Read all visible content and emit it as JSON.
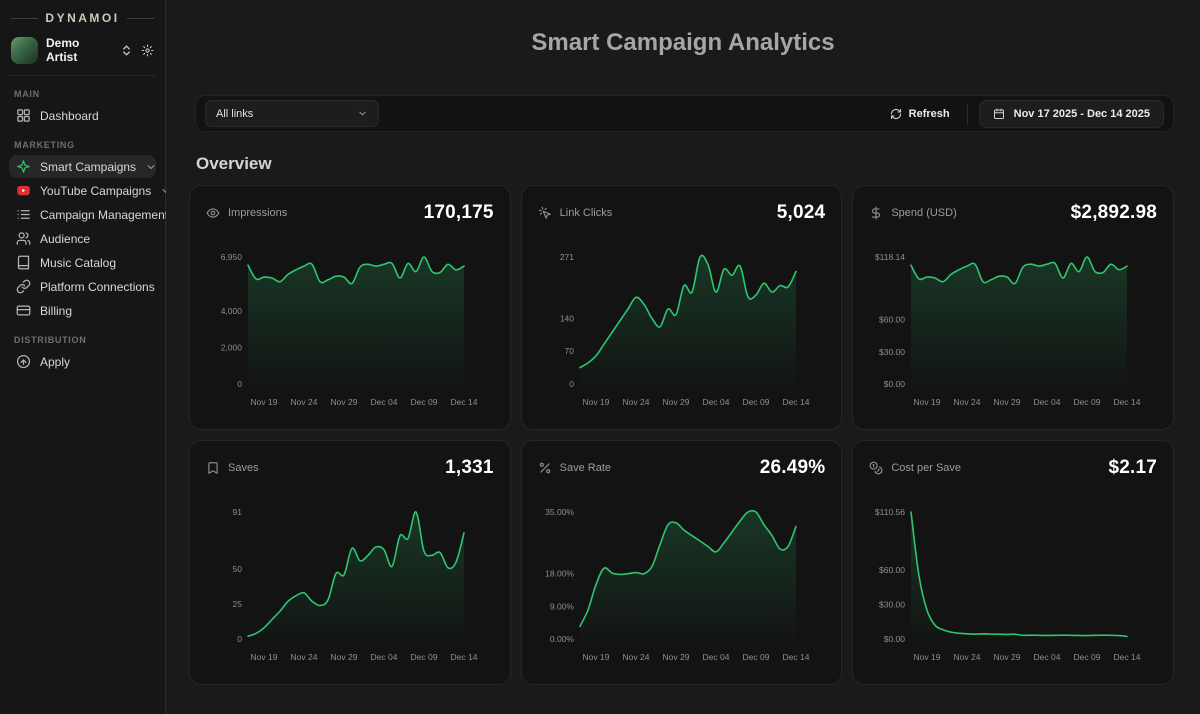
{
  "brand": {
    "logo_text": "DYNAMOI"
  },
  "profile": {
    "name": "Demo Artist"
  },
  "sidebar": {
    "sections": [
      {
        "label": "MAIN",
        "items": [
          {
            "id": "dashboard",
            "label": "Dashboard",
            "icon": "dashboard-icon"
          }
        ]
      },
      {
        "label": "MARKETING",
        "items": [
          {
            "id": "smart-campaigns",
            "label": "Smart Campaigns",
            "icon": "spark-icon",
            "active": true,
            "chevron": true
          },
          {
            "id": "youtube-campaigns",
            "label": "YouTube Campaigns",
            "icon": "youtube-icon",
            "chevron": true
          },
          {
            "id": "campaign-management",
            "label": "Campaign Management",
            "icon": "list-icon"
          },
          {
            "id": "audience",
            "label": "Audience",
            "icon": "users-icon"
          },
          {
            "id": "music-catalog",
            "label": "Music Catalog",
            "icon": "book-icon"
          },
          {
            "id": "platform-connections",
            "label": "Platform Connections",
            "icon": "link-icon"
          },
          {
            "id": "billing",
            "label": "Billing",
            "icon": "card-icon"
          }
        ]
      },
      {
        "label": "DISTRIBUTION",
        "items": [
          {
            "id": "apply",
            "label": "Apply",
            "icon": "apply-icon"
          }
        ]
      }
    ]
  },
  "header": {
    "title": "Smart Campaign Analytics"
  },
  "filter_bar": {
    "links_filter_value": "All links",
    "refresh_label": "Refresh",
    "date_range": "Nov 17 2025 - Dec 14 2025"
  },
  "overview_heading": "Overview",
  "colors": {
    "accent_green": "#2ec66f",
    "chart_fill_top": "rgba(46,198,111,0.20)",
    "chart_fill_bottom": "rgba(46,198,111,0.01)",
    "youtube_red": "#e02f2f"
  },
  "chart_data": [
    {
      "type": "line",
      "metric": "Impressions",
      "icon": "eye-icon",
      "value": "170,175",
      "ymax": 6950,
      "y_ticks": [
        {
          "v": 0,
          "label": "0"
        },
        {
          "v": 2000,
          "label": "2,000"
        },
        {
          "v": 4000,
          "label": "4,000"
        },
        {
          "v": 6950,
          "label": "6,950"
        }
      ],
      "x_tick_labels": [
        "Nov 19",
        "Nov 24",
        "Nov 29",
        "Dec 04",
        "Dec 09",
        "Dec 14"
      ],
      "x_tick_indices": [
        2,
        7,
        12,
        17,
        22,
        27
      ],
      "values": [
        6500,
        5750,
        5850,
        5800,
        5600,
        6000,
        6250,
        6450,
        6550,
        5600,
        5700,
        5900,
        5850,
        5500,
        6400,
        6550,
        6450,
        6550,
        6600,
        5800,
        6600,
        6150,
        6950,
        6150,
        6100,
        6550,
        6250,
        6450
      ]
    },
    {
      "type": "line",
      "metric": "Link Clicks",
      "icon": "cursor-click-icon",
      "value": "5,024",
      "ymax": 271,
      "y_ticks": [
        {
          "v": 0,
          "label": "0"
        },
        {
          "v": 70,
          "label": "70"
        },
        {
          "v": 140,
          "label": "140"
        },
        {
          "v": 271,
          "label": "271"
        }
      ],
      "x_tick_labels": [
        "Nov 19",
        "Nov 24",
        "Nov 29",
        "Dec 04",
        "Dec 09",
        "Dec 14"
      ],
      "x_tick_indices": [
        2,
        7,
        12,
        17,
        22,
        27
      ],
      "values": [
        35,
        45,
        60,
        85,
        110,
        135,
        160,
        185,
        170,
        140,
        122,
        160,
        148,
        210,
        196,
        271,
        255,
        196,
        245,
        232,
        252,
        186,
        190,
        215,
        196,
        210,
        207,
        240
      ]
    },
    {
      "type": "line",
      "metric": "Spend (USD)",
      "icon": "dollar-icon",
      "value": "$2,892.98",
      "ymax": 118.14,
      "y_ticks": [
        {
          "v": 0,
          "label": "$0.00"
        },
        {
          "v": 30,
          "label": "$30.00"
        },
        {
          "v": 60,
          "label": "$60.00"
        },
        {
          "v": 118.14,
          "label": "$118.14"
        }
      ],
      "x_tick_labels": [
        "Nov 19",
        "Nov 24",
        "Nov 29",
        "Dec 04",
        "Dec 09",
        "Dec 14"
      ],
      "x_tick_indices": [
        2,
        7,
        12,
        17,
        22,
        27
      ],
      "values": [
        110.5,
        97.8,
        99.5,
        98.6,
        95.2,
        102,
        106.3,
        109.7,
        111.4,
        95.2,
        96.9,
        100.3,
        99.5,
        93.5,
        108.8,
        111.4,
        109.7,
        111.4,
        112.2,
        98.6,
        112.2,
        104.6,
        118.14,
        104.6,
        103.7,
        111.4,
        106.3,
        109.7
      ]
    },
    {
      "type": "line",
      "metric": "Saves",
      "icon": "bookmark-icon",
      "value": "1,331",
      "ymax": 91,
      "y_ticks": [
        {
          "v": 0,
          "label": "0"
        },
        {
          "v": 25,
          "label": "25"
        },
        {
          "v": 50,
          "label": "50"
        },
        {
          "v": 91,
          "label": "91"
        }
      ],
      "x_tick_labels": [
        "Nov 19",
        "Nov 24",
        "Nov 29",
        "Dec 04",
        "Dec 09",
        "Dec 14"
      ],
      "x_tick_indices": [
        2,
        7,
        12,
        17,
        22,
        27
      ],
      "values": [
        2,
        4,
        8,
        14,
        20,
        27,
        31,
        33,
        27,
        24,
        28,
        47,
        46,
        65,
        56,
        60,
        66,
        64,
        52,
        74,
        72,
        91,
        63,
        60,
        62,
        51,
        55,
        76
      ]
    },
    {
      "type": "line",
      "metric": "Save Rate",
      "icon": "percent-icon",
      "value": "26.49%",
      "ymax": 35,
      "y_ticks": [
        {
          "v": 0,
          "label": "0.00%"
        },
        {
          "v": 9,
          "label": "9.00%"
        },
        {
          "v": 18,
          "label": "18.00%"
        },
        {
          "v": 35,
          "label": "35.00%"
        }
      ],
      "x_tick_labels": [
        "Nov 19",
        "Nov 24",
        "Nov 29",
        "Dec 04",
        "Dec 09",
        "Dec 14"
      ],
      "x_tick_indices": [
        2,
        7,
        12,
        17,
        22,
        27
      ],
      "values": [
        3.5,
        8,
        15,
        19.5,
        18.2,
        17.8,
        18,
        18.3,
        18,
        20,
        26,
        31.5,
        32,
        30,
        28.5,
        27,
        25.5,
        24,
        26.5,
        29.5,
        32.5,
        35,
        35,
        31.5,
        28.5,
        24.8,
        25.5,
        31
      ]
    },
    {
      "type": "line",
      "metric": "Cost per Save",
      "icon": "coins-icon",
      "value": "$2.17",
      "ymax": 110.56,
      "y_ticks": [
        {
          "v": 0,
          "label": "$0.00"
        },
        {
          "v": 30,
          "label": "$30.00"
        },
        {
          "v": 60,
          "label": "$60.00"
        },
        {
          "v": 110.56,
          "label": "$110.56"
        }
      ],
      "x_tick_labels": [
        "Nov 19",
        "Nov 24",
        "Nov 29",
        "Dec 04",
        "Dec 09",
        "Dec 14"
      ],
      "x_tick_indices": [
        2,
        7,
        12,
        17,
        22,
        27
      ],
      "values": [
        110.56,
        55,
        25,
        12,
        8,
        6,
        5,
        4.5,
        4.2,
        4.5,
        4.3,
        4.2,
        4,
        4.2,
        3.2,
        3.3,
        3.2,
        3.1,
        3.2,
        3.3,
        3.2,
        3.1,
        3,
        3.2,
        3.3,
        3.2,
        3,
        2.2
      ]
    }
  ]
}
